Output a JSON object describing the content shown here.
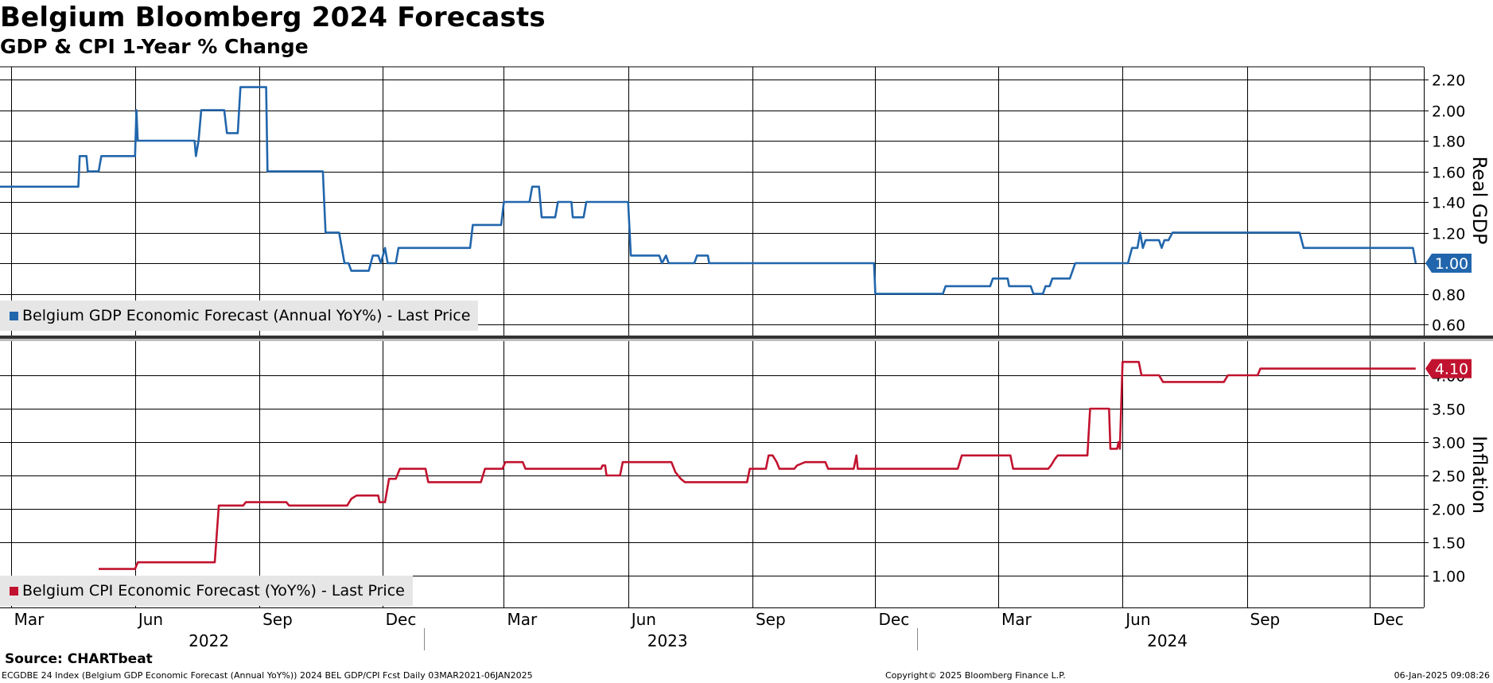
{
  "header": {
    "title": "Belgium Bloomberg 2024 Forecasts",
    "subtitle": "GDP & CPI 1-Year % Change"
  },
  "colors": {
    "gdp": "#2166ac",
    "cpi": "#c1132f",
    "grid": "#000000",
    "legend_bg": "#e6e6e6"
  },
  "footer": {
    "source": "Source: CHARTbeat",
    "left": "ECGDBE 24 Index (Belgium GDP Economic Forecast (Annual YoY%)) 2024 BEL GDP/CPI Fcst  Daily 03MAR2021-06JAN2025",
    "middle": "Copyright© 2025 Bloomberg Finance L.P.",
    "right": "06-Jan-2025 09:08:26"
  },
  "chart_data": [
    {
      "type": "line",
      "panel": "top",
      "ylabel": "Real GDP",
      "ylim": [
        0.55,
        2.3
      ],
      "yticks": [
        "0.60",
        "0.80",
        "1.00",
        "1.20",
        "1.40",
        "1.60",
        "1.80",
        "2.00",
        "2.20"
      ],
      "last_value_label": "1.00",
      "legend": "Belgium GDP Economic Forecast (Annual YoY%) - Last Price",
      "legend_position": "bottom-left",
      "grid": true,
      "series": [
        {
          "name": "Belgium GDP Economic Forecast (Annual YoY%) - Last Price",
          "points": [
            [
              "2022-02-21",
              1.5
            ],
            [
              "2022-04-20",
              1.5
            ],
            [
              "2022-04-21",
              1.7
            ],
            [
              "2022-04-26",
              1.7
            ],
            [
              "2022-04-27",
              1.6
            ],
            [
              "2022-05-05",
              1.6
            ],
            [
              "2022-05-07",
              1.7
            ],
            [
              "2022-06-01",
              1.7
            ],
            [
              "2022-06-02",
              2.0
            ],
            [
              "2022-06-03",
              1.8
            ],
            [
              "2022-07-15",
              1.8
            ],
            [
              "2022-07-16",
              1.7
            ],
            [
              "2022-07-18",
              1.8
            ],
            [
              "2022-07-20",
              2.0
            ],
            [
              "2022-08-06",
              2.0
            ],
            [
              "2022-08-08",
              1.85
            ],
            [
              "2022-08-16",
              1.85
            ],
            [
              "2022-08-18",
              2.15
            ],
            [
              "2022-09-06",
              2.15
            ],
            [
              "2022-09-07",
              1.6
            ],
            [
              "2022-10-18",
              1.6
            ],
            [
              "2022-10-20",
              1.2
            ],
            [
              "2022-10-30",
              1.2
            ],
            [
              "2022-11-03",
              1.0
            ],
            [
              "2022-11-06",
              1.0
            ],
            [
              "2022-11-08",
              0.95
            ],
            [
              "2022-11-21",
              0.95
            ],
            [
              "2022-11-24",
              1.05
            ],
            [
              "2022-11-28",
              1.05
            ],
            [
              "2022-11-30",
              1.0
            ],
            [
              "2022-12-03",
              1.1
            ],
            [
              "2022-12-05",
              1.0
            ],
            [
              "2022-12-11",
              1.0
            ],
            [
              "2022-12-13",
              1.1
            ],
            [
              "2023-02-04",
              1.1
            ],
            [
              "2023-02-06",
              1.25
            ],
            [
              "2023-02-27",
              1.25
            ],
            [
              "2023-03-01",
              1.4
            ],
            [
              "2023-03-20",
              1.4
            ],
            [
              "2023-03-22",
              1.5
            ],
            [
              "2023-03-27",
              1.5
            ],
            [
              "2023-03-29",
              1.3
            ],
            [
              "2023-04-08",
              1.3
            ],
            [
              "2023-04-10",
              1.4
            ],
            [
              "2023-04-20",
              1.4
            ],
            [
              "2023-04-21",
              1.3
            ],
            [
              "2023-04-29",
              1.3
            ],
            [
              "2023-05-01",
              1.4
            ],
            [
              "2023-06-01",
              1.4
            ],
            [
              "2023-06-03",
              1.05
            ],
            [
              "2023-06-24",
              1.05
            ],
            [
              "2023-06-26",
              1.0
            ],
            [
              "2023-06-29",
              1.05
            ],
            [
              "2023-07-01",
              1.0
            ],
            [
              "2023-07-20",
              1.0
            ],
            [
              "2023-07-22",
              1.05
            ],
            [
              "2023-07-30",
              1.05
            ],
            [
              "2023-07-31",
              1.0
            ],
            [
              "2023-11-30",
              1.0
            ],
            [
              "2023-12-01",
              0.8
            ],
            [
              "2024-01-20",
              0.8
            ],
            [
              "2024-01-22",
              0.85
            ],
            [
              "2024-02-24",
              0.85
            ],
            [
              "2024-02-26",
              0.9
            ],
            [
              "2024-03-08",
              0.9
            ],
            [
              "2024-03-09",
              0.85
            ],
            [
              "2024-03-25",
              0.85
            ],
            [
              "2024-03-27",
              0.8
            ],
            [
              "2024-04-03",
              0.8
            ],
            [
              "2024-04-05",
              0.85
            ],
            [
              "2024-04-08",
              0.85
            ],
            [
              "2024-04-10",
              0.9
            ],
            [
              "2024-04-23",
              0.9
            ],
            [
              "2024-04-27",
              1.0
            ],
            [
              "2024-06-05",
              1.0
            ],
            [
              "2024-06-08",
              1.1
            ],
            [
              "2024-06-12",
              1.1
            ],
            [
              "2024-06-14",
              1.2
            ],
            [
              "2024-06-16",
              1.1
            ],
            [
              "2024-06-18",
              1.15
            ],
            [
              "2024-06-28",
              1.15
            ],
            [
              "2024-06-30",
              1.1
            ],
            [
              "2024-07-02",
              1.15
            ],
            [
              "2024-07-05",
              1.15
            ],
            [
              "2024-07-08",
              1.2
            ],
            [
              "2024-10-10",
              1.2
            ],
            [
              "2024-10-13",
              1.1
            ],
            [
              "2025-01-02",
              1.1
            ],
            [
              "2025-01-04",
              1.0
            ]
          ]
        }
      ]
    },
    {
      "type": "line",
      "panel": "bottom",
      "ylabel": "Inflation",
      "ylim": [
        0.5,
        4.55
      ],
      "yticks": [
        "1.00",
        "1.50",
        "2.00",
        "2.50",
        "3.00",
        "3.50",
        "4.00"
      ],
      "last_value_label": "4.10",
      "legend": "Belgium CPI Economic Forecast (YoY%) - Last Price",
      "legend_position": "bottom-left",
      "grid": true,
      "series": [
        {
          "name": "Belgium CPI Economic Forecast (YoY%) - Last Price",
          "points": [
            [
              "2022-05-05",
              1.1
            ],
            [
              "2022-06-01",
              1.1
            ],
            [
              "2022-06-03",
              1.2
            ],
            [
              "2022-07-30",
              1.2
            ],
            [
              "2022-08-02",
              2.05
            ],
            [
              "2022-08-20",
              2.05
            ],
            [
              "2022-08-22",
              2.1
            ],
            [
              "2022-09-21",
              2.1
            ],
            [
              "2022-09-23",
              2.05
            ],
            [
              "2022-11-05",
              2.05
            ],
            [
              "2022-11-08",
              2.15
            ],
            [
              "2022-11-12",
              2.2
            ],
            [
              "2022-11-28",
              2.2
            ],
            [
              "2022-11-29",
              2.1
            ],
            [
              "2022-12-03",
              2.1
            ],
            [
              "2022-12-06",
              2.45
            ],
            [
              "2022-12-11",
              2.45
            ],
            [
              "2022-12-14",
              2.6
            ],
            [
              "2023-01-02",
              2.6
            ],
            [
              "2023-01-04",
              2.4
            ],
            [
              "2023-02-12",
              2.4
            ],
            [
              "2023-02-15",
              2.6
            ],
            [
              "2023-02-28",
              2.6
            ],
            [
              "2023-03-02",
              2.7
            ],
            [
              "2023-03-15",
              2.7
            ],
            [
              "2023-03-17",
              2.6
            ],
            [
              "2023-05-12",
              2.6
            ],
            [
              "2023-05-13",
              2.65
            ],
            [
              "2023-05-15",
              2.65
            ],
            [
              "2023-05-16",
              2.5
            ],
            [
              "2023-05-26",
              2.5
            ],
            [
              "2023-05-28",
              2.7
            ],
            [
              "2023-07-03",
              2.7
            ],
            [
              "2023-07-06",
              2.55
            ],
            [
              "2023-07-10",
              2.45
            ],
            [
              "2023-07-13",
              2.4
            ],
            [
              "2023-08-28",
              2.4
            ],
            [
              "2023-08-30",
              2.6
            ],
            [
              "2023-09-11",
              2.6
            ],
            [
              "2023-09-13",
              2.8
            ],
            [
              "2023-09-16",
              2.8
            ],
            [
              "2023-09-19",
              2.7
            ],
            [
              "2023-09-21",
              2.6
            ],
            [
              "2023-10-02",
              2.6
            ],
            [
              "2023-10-04",
              2.65
            ],
            [
              "2023-10-10",
              2.7
            ],
            [
              "2023-10-25",
              2.7
            ],
            [
              "2023-10-27",
              2.6
            ],
            [
              "2023-11-15",
              2.6
            ],
            [
              "2023-11-17",
              2.8
            ],
            [
              "2023-11-18",
              2.6
            ],
            [
              "2024-01-31",
              2.6
            ],
            [
              "2024-02-03",
              2.8
            ],
            [
              "2024-03-10",
              2.8
            ],
            [
              "2024-03-12",
              2.6
            ],
            [
              "2024-04-07",
              2.6
            ],
            [
              "2024-04-09",
              2.65
            ],
            [
              "2024-04-12",
              2.75
            ],
            [
              "2024-04-14",
              2.8
            ],
            [
              "2024-05-06",
              2.8
            ],
            [
              "2024-05-08",
              3.5
            ],
            [
              "2024-05-22",
              3.5
            ],
            [
              "2024-05-23",
              2.9
            ],
            [
              "2024-05-28",
              2.9
            ],
            [
              "2024-05-29",
              3.0
            ],
            [
              "2024-05-30",
              2.9
            ],
            [
              "2024-06-01",
              4.2
            ],
            [
              "2024-06-13",
              4.2
            ],
            [
              "2024-06-15",
              4.0
            ],
            [
              "2024-06-28",
              4.0
            ],
            [
              "2024-07-01",
              3.9
            ],
            [
              "2024-08-15",
              3.9
            ],
            [
              "2024-08-18",
              4.0
            ],
            [
              "2024-09-09",
              4.0
            ],
            [
              "2024-09-11",
              4.1
            ],
            [
              "2025-01-04",
              4.1
            ]
          ]
        }
      ]
    }
  ],
  "x_axis": {
    "domain": [
      "2022-02-21",
      "2025-01-10"
    ],
    "months": [
      {
        "label": "Mar",
        "date": "2022-03-01"
      },
      {
        "label": "Jun",
        "date": "2022-06-01"
      },
      {
        "label": "Sep",
        "date": "2022-09-01"
      },
      {
        "label": "Dec",
        "date": "2022-12-01"
      },
      {
        "label": "Mar",
        "date": "2023-03-01"
      },
      {
        "label": "Jun",
        "date": "2023-06-01"
      },
      {
        "label": "Sep",
        "date": "2023-09-01"
      },
      {
        "label": "Dec",
        "date": "2023-12-01"
      },
      {
        "label": "Mar",
        "date": "2024-03-01"
      },
      {
        "label": "Jun",
        "date": "2024-06-01"
      },
      {
        "label": "Sep",
        "date": "2024-09-01"
      },
      {
        "label": "Dec",
        "date": "2024-12-01"
      }
    ],
    "years": [
      {
        "label": "2022",
        "start": "2022-02-21",
        "end": "2023-01-01"
      },
      {
        "label": "2023",
        "start": "2023-01-01",
        "end": "2024-01-01"
      },
      {
        "label": "2024",
        "start": "2024-01-01",
        "end": "2025-01-10"
      }
    ],
    "vertical_gridlines": [
      "2022-03-01",
      "2022-06-01",
      "2022-09-01",
      "2022-12-01",
      "2023-03-01",
      "2023-06-01",
      "2023-09-01",
      "2023-12-01",
      "2024-03-01",
      "2024-06-01",
      "2024-09-01",
      "2024-12-01"
    ]
  }
}
